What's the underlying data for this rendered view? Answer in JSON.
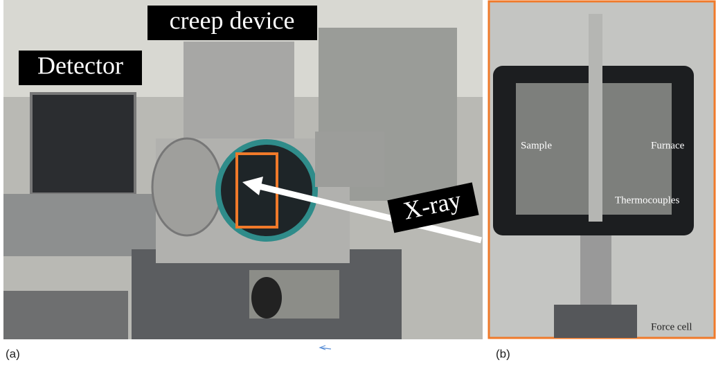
{
  "panel_a": {
    "labels": {
      "creep_device": "creep device",
      "detector": "Detector",
      "xray": "X-ray"
    },
    "caption": "(a)"
  },
  "panel_b": {
    "labels": {
      "sample": "Sample",
      "furnace": "Furnace",
      "thermocouples": "Thermocouples",
      "force_cell": "Force cell"
    },
    "caption": "(b)"
  }
}
